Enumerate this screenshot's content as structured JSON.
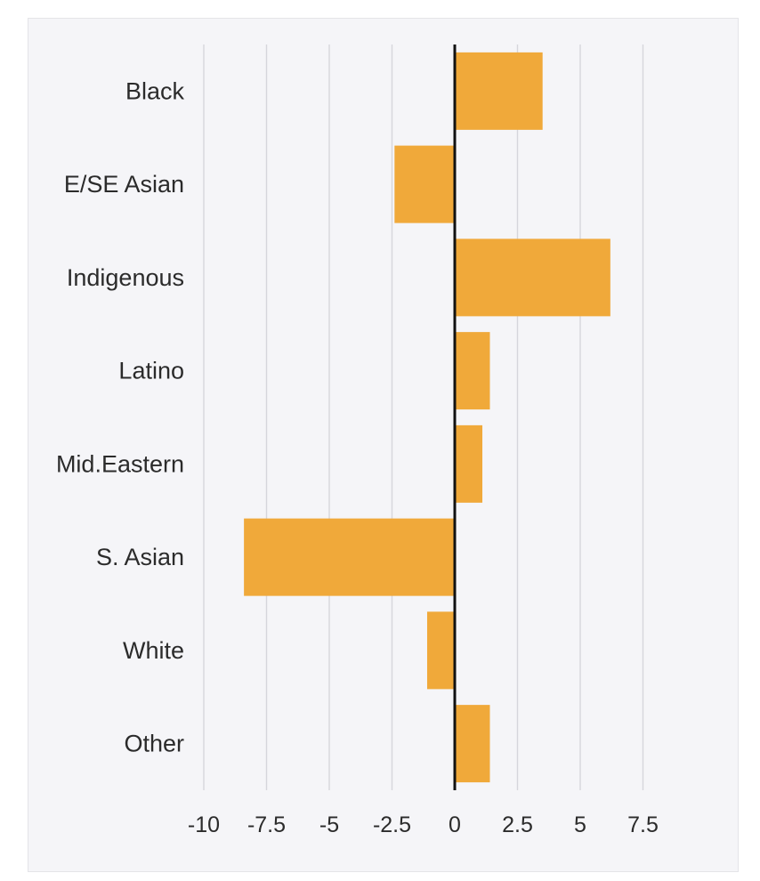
{
  "chart_data": {
    "type": "bar",
    "orientation": "horizontal",
    "title": "",
    "xlabel": "",
    "ylabel": "",
    "categories": [
      "Black",
      "E/SE Asian",
      "Indigenous",
      "Latino",
      "Mid.Eastern",
      "S. Asian",
      "White",
      "Other"
    ],
    "values": [
      3.5,
      -2.4,
      6.2,
      1.4,
      1.1,
      -8.4,
      -1.1,
      1.4
    ],
    "xlim": [
      -10,
      10
    ],
    "xticks": [
      -10,
      -7.5,
      -5,
      -2.5,
      0,
      2.5,
      5,
      7.5
    ],
    "xtick_labels": [
      "-10",
      "-7.5",
      "-5",
      "-2.5",
      "0",
      "2.5",
      "5",
      "7.5"
    ],
    "grid": "vertical",
    "legend": "none",
    "colors": {
      "bar": "#f0a93a",
      "gridline": "#d6d6dc",
      "zero_line": "#111111",
      "panel_bg": "#f5f5f8"
    }
  }
}
